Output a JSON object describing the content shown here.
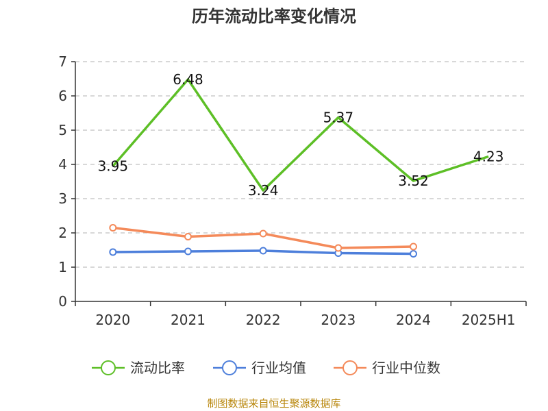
{
  "chart_data": {
    "type": "line",
    "title": "历年流动比率变化情况",
    "categories": [
      "2020",
      "2021",
      "2022",
      "2023",
      "2024",
      "2025H1"
    ],
    "ylim": [
      0,
      7
    ],
    "yticks": [
      0,
      1,
      2,
      3,
      4,
      5,
      6,
      7
    ],
    "grid": true,
    "legend_position": "bottom",
    "series": [
      {
        "name": "流动比率",
        "color": "#5dbf26",
        "values": [
          3.95,
          6.48,
          3.24,
          5.37,
          3.52,
          4.23
        ],
        "labels": [
          "3.95",
          "6.48",
          "3.24",
          "5.37",
          "3.52",
          "4.23"
        ]
      },
      {
        "name": "行业均值",
        "color": "#4d7fdb",
        "values": [
          1.44,
          1.46,
          1.48,
          1.41,
          1.39,
          null
        ]
      },
      {
        "name": "行业中位数",
        "color": "#f48a5a",
        "values": [
          2.15,
          1.89,
          1.98,
          1.56,
          1.6,
          null
        ]
      }
    ],
    "source": "制图数据来自恒生聚源数据库"
  }
}
